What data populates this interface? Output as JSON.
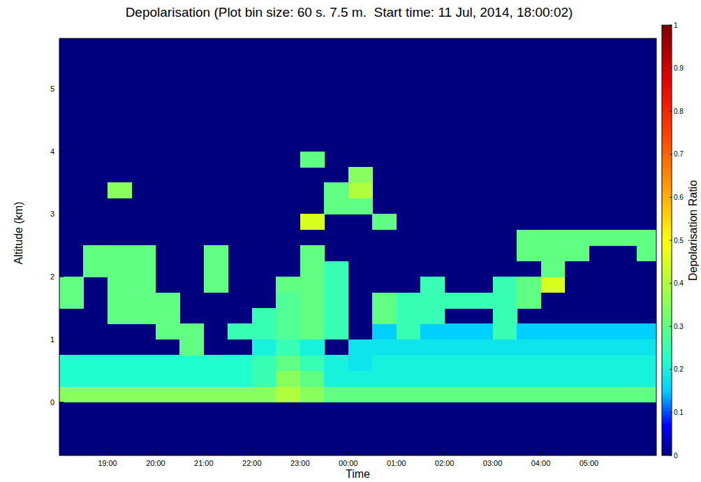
{
  "chart_data": {
    "type": "heatmap",
    "title": "Depolarisation (Plot bin size: 60 s. 7.5 m.  Start time: 11 Jul, 2014, 18:00:02)",
    "x_label": "Time",
    "y_label": "Altitude (km)",
    "colorbar_label": "Depolarisation Ratio",
    "xlim": [
      18,
      30.4
    ],
    "xticks": [
      {
        "value": 19,
        "label": "19:00"
      },
      {
        "value": 20,
        "label": "20:00"
      },
      {
        "value": 21,
        "label": "21:00"
      },
      {
        "value": 22,
        "label": "22:00"
      },
      {
        "value": 23,
        "label": "23:00"
      },
      {
        "value": 24,
        "label": "00:00"
      },
      {
        "value": 25,
        "label": "01:00"
      },
      {
        "value": 26,
        "label": "02:00"
      },
      {
        "value": 27,
        "label": "03:00"
      },
      {
        "value": 28,
        "label": "04:00"
      },
      {
        "value": 29,
        "label": "05:00"
      }
    ],
    "ylim": [
      -0.85,
      5.8
    ],
    "yticks": [
      0,
      1,
      2,
      3,
      4,
      5
    ],
    "zlim": [
      0,
      1
    ],
    "zticks": [
      0,
      0.1,
      0.2,
      0.3,
      0.4,
      0.5,
      0.6,
      0.7,
      0.8,
      0.9,
      1
    ],
    "x_bins": [
      18,
      18.5,
      19,
      19.5,
      20,
      20.5,
      21,
      21.5,
      22,
      22.5,
      23,
      23.5,
      24,
      24.5,
      25,
      25.5,
      26,
      26.5,
      27,
      27.5,
      28,
      28.5,
      29,
      29.5,
      30,
      30.5
    ],
    "y_bins": [
      0,
      0.25,
      0.5,
      0.75,
      1,
      1.25,
      1.5,
      1.75,
      2,
      2.25,
      2.5,
      2.75,
      3,
      3.25,
      3.5,
      3.75,
      4
    ],
    "values": [
      [
        0.35,
        0.35,
        0.35,
        0.35,
        0.35,
        0.35,
        0.35,
        0.35,
        0.35,
        0.4,
        0.35,
        0.3,
        0.3,
        0.3,
        0.3,
        0.3,
        0.3,
        0.3,
        0.3,
        0.3,
        0.3,
        0.3,
        0.3,
        0.3,
        0.3
      ],
      [
        0.22,
        0.22,
        0.22,
        0.22,
        0.22,
        0.22,
        0.22,
        0.22,
        0.25,
        0.35,
        0.3,
        0.2,
        0.2,
        0.2,
        0.2,
        0.2,
        0.2,
        0.2,
        0.2,
        0.2,
        0.2,
        0.2,
        0.2,
        0.2,
        0.2
      ],
      [
        0.22,
        0.22,
        0.22,
        0.22,
        0.22,
        0.22,
        0.22,
        0.22,
        0.25,
        0.3,
        0.25,
        0.2,
        0.18,
        0.2,
        0.2,
        0.2,
        0.2,
        0.2,
        0.2,
        0.2,
        0.2,
        0.2,
        0.2,
        0.2,
        0.2
      ],
      [
        null,
        null,
        null,
        null,
        null,
        0.3,
        null,
        null,
        0.2,
        0.25,
        0.2,
        null,
        0.18,
        0.18,
        0.18,
        0.18,
        0.18,
        0.18,
        0.18,
        0.18,
        0.18,
        0.18,
        0.18,
        0.18,
        0.18
      ],
      [
        null,
        null,
        null,
        null,
        0.3,
        0.3,
        null,
        0.25,
        0.25,
        0.28,
        0.3,
        0.25,
        null,
        0.15,
        0.25,
        0.15,
        0.15,
        0.15,
        0.25,
        0.15,
        0.15,
        0.15,
        0.15,
        0.15,
        0.15
      ],
      [
        null,
        null,
        0.3,
        0.3,
        0.3,
        null,
        null,
        null,
        0.25,
        0.28,
        0.3,
        0.25,
        null,
        0.3,
        0.25,
        0.25,
        null,
        null,
        0.25,
        null,
        null,
        null,
        null,
        null,
        null
      ],
      [
        0.3,
        null,
        0.3,
        0.3,
        0.3,
        null,
        null,
        null,
        null,
        0.28,
        0.3,
        0.25,
        null,
        0.3,
        0.25,
        0.25,
        0.25,
        0.25,
        0.25,
        0.3,
        null,
        null,
        null,
        null,
        null
      ],
      [
        0.3,
        null,
        0.3,
        0.3,
        null,
        null,
        0.3,
        null,
        null,
        0.3,
        0.3,
        0.25,
        null,
        null,
        null,
        0.25,
        null,
        null,
        0.25,
        0.3,
        0.45,
        null,
        null,
        null,
        null
      ],
      [
        null,
        0.3,
        0.3,
        0.3,
        null,
        null,
        0.3,
        null,
        null,
        null,
        0.3,
        0.25,
        null,
        null,
        null,
        null,
        null,
        null,
        null,
        null,
        0.3,
        null,
        null,
        null,
        null
      ],
      [
        null,
        0.3,
        0.3,
        0.3,
        null,
        null,
        0.3,
        null,
        null,
        null,
        0.3,
        null,
        null,
        null,
        null,
        null,
        null,
        null,
        null,
        0.3,
        0.3,
        0.3,
        null,
        null,
        0.3
      ],
      [
        null,
        null,
        null,
        null,
        null,
        null,
        null,
        null,
        null,
        null,
        null,
        null,
        null,
        null,
        null,
        null,
        null,
        null,
        null,
        0.3,
        0.3,
        0.3,
        0.3,
        0.3,
        0.3
      ],
      [
        null,
        null,
        null,
        null,
        null,
        null,
        null,
        null,
        null,
        null,
        0.45,
        null,
        null,
        0.3,
        null,
        null,
        null,
        null,
        null,
        null,
        null,
        null,
        null,
        null,
        null
      ],
      [
        null,
        null,
        null,
        null,
        null,
        null,
        null,
        null,
        null,
        null,
        null,
        0.3,
        0.3,
        null,
        null,
        null,
        null,
        null,
        null,
        null,
        null,
        null,
        null,
        null,
        null
      ],
      [
        null,
        null,
        0.35,
        null,
        null,
        null,
        null,
        null,
        null,
        null,
        null,
        0.3,
        0.4,
        null,
        null,
        null,
        null,
        null,
        null,
        null,
        null,
        null,
        null,
        null,
        null
      ],
      [
        null,
        null,
        null,
        null,
        null,
        null,
        null,
        null,
        null,
        null,
        null,
        null,
        0.35,
        null,
        null,
        null,
        null,
        null,
        null,
        null,
        null,
        null,
        null,
        null,
        null
      ],
      [
        null,
        null,
        null,
        null,
        null,
        null,
        null,
        null,
        null,
        null,
        0.3,
        null,
        null,
        null,
        null,
        null,
        null,
        null,
        null,
        null,
        null,
        null,
        null,
        null,
        null
      ]
    ]
  }
}
